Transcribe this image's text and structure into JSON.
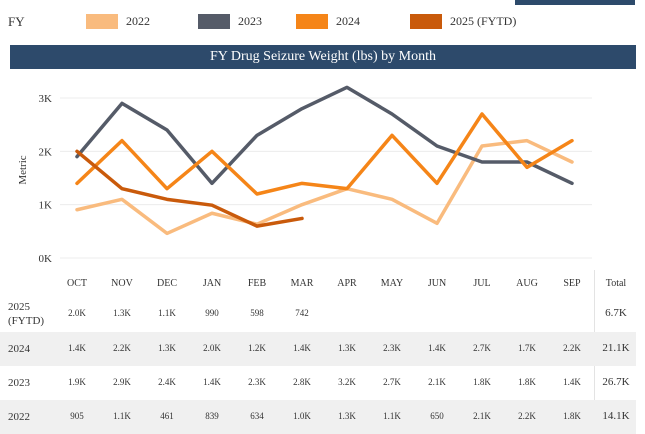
{
  "legend": {
    "label": "FY",
    "items": [
      {
        "name": "2022",
        "color": "#f9bb7e"
      },
      {
        "name": "2023",
        "color": "#555b68"
      },
      {
        "name": "2024",
        "color": "#f58518"
      },
      {
        "name": "2025 (FYTD)",
        "color": "#c95a0b"
      }
    ]
  },
  "chart_data": {
    "type": "line",
    "title": "FY Drug Seizure Weight (lbs) by Month",
    "ylabel": "Metric",
    "xlabel": "",
    "categories": [
      "OCT",
      "NOV",
      "DEC",
      "JAN",
      "FEB",
      "MAR",
      "APR",
      "MAY",
      "JUN",
      "JUL",
      "AUG",
      "SEP"
    ],
    "ylim": [
      0,
      3300
    ],
    "yticks": [
      {
        "value": 0,
        "label": "0K"
      },
      {
        "value": 1000,
        "label": "1K"
      },
      {
        "value": 2000,
        "label": "2K"
      },
      {
        "value": 3000,
        "label": "3K"
      }
    ],
    "grid": true,
    "series": [
      {
        "name": "2022",
        "color": "#f9bb7e",
        "values": [
          905,
          1100,
          461,
          839,
          634,
          1000,
          1300,
          1100,
          650,
          2100,
          2200,
          1800
        ]
      },
      {
        "name": "2023",
        "color": "#555b68",
        "values": [
          1900,
          2900,
          2400,
          1400,
          2300,
          2800,
          3200,
          2700,
          2100,
          1800,
          1800,
          1400
        ]
      },
      {
        "name": "2024",
        "color": "#f58518",
        "values": [
          1400,
          2200,
          1300,
          2000,
          1200,
          1400,
          1300,
          2300,
          1400,
          2700,
          1700,
          2200
        ]
      },
      {
        "name": "2025 (FYTD)",
        "color": "#c95a0b",
        "values": [
          2000,
          1300,
          1100,
          990,
          598,
          742,
          null,
          null,
          null,
          null,
          null,
          null
        ]
      }
    ]
  },
  "table": {
    "total_header": "Total",
    "rows": [
      {
        "label": "2025\n(FYTD)",
        "cells": [
          "2.0K",
          "1.3K",
          "1.1K",
          "990",
          "598",
          "742",
          "",
          "",
          "",
          "",
          "",
          ""
        ],
        "total": "6.7K"
      },
      {
        "label": "2024",
        "cells": [
          "1.4K",
          "2.2K",
          "1.3K",
          "2.0K",
          "1.2K",
          "1.4K",
          "1.3K",
          "2.3K",
          "1.4K",
          "2.7K",
          "1.7K",
          "2.2K"
        ],
        "total": "21.1K"
      },
      {
        "label": "2023",
        "cells": [
          "1.9K",
          "2.9K",
          "2.4K",
          "1.4K",
          "2.3K",
          "2.8K",
          "3.2K",
          "2.7K",
          "2.1K",
          "1.8K",
          "1.8K",
          "1.4K"
        ],
        "total": "26.7K"
      },
      {
        "label": "2022",
        "cells": [
          "905",
          "1.1K",
          "461",
          "839",
          "634",
          "1.0K",
          "1.3K",
          "1.1K",
          "650",
          "2.1K",
          "2.2K",
          "1.8K"
        ],
        "total": "14.1K"
      }
    ]
  }
}
